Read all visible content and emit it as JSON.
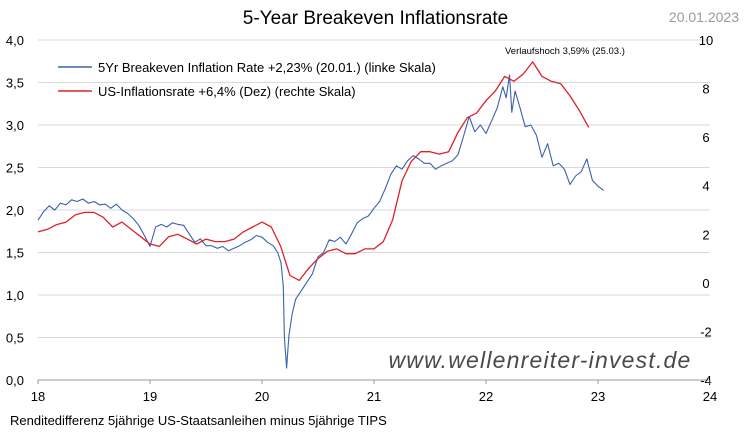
{
  "title": "5-Year Breakeven Inflationsrate",
  "date": "20.01.2023",
  "footnote": "Renditedifferenz 5jährige US-Staatsanleihen minus 5jährige TIPS",
  "annotation": "Verlaufshoch 3,59% (25.03.)",
  "watermark": "www.wellenreiter-invest.de",
  "chart_data": {
    "type": "line",
    "xlabel": "",
    "ylabel": "",
    "x_ticks": [
      "18",
      "19",
      "20",
      "21",
      "22",
      "23",
      "24"
    ],
    "x_range": [
      18,
      24
    ],
    "y_left_range": [
      0,
      4
    ],
    "y_left_ticks": [
      "0,0",
      "0,5",
      "1,0",
      "1,5",
      "2,0",
      "2,5",
      "3,0",
      "3,5",
      "4,0"
    ],
    "y_right_range": [
      -4,
      10
    ],
    "y_right_ticks": [
      "-4",
      "-2",
      "0",
      "2",
      "4",
      "6",
      "8",
      "10"
    ],
    "grid": true,
    "legend_position": "top-left",
    "series": [
      {
        "name": "5Yr Breakeven Inflation Rate +2,23% (20.01.) (linke Skala)",
        "axis": "left",
        "color": "#3a62ad",
        "x": [
          18.0,
          18.05,
          18.1,
          18.15,
          18.2,
          18.25,
          18.3,
          18.35,
          18.4,
          18.45,
          18.5,
          18.55,
          18.6,
          18.65,
          18.7,
          18.75,
          18.8,
          18.85,
          18.9,
          18.95,
          19.0,
          19.05,
          19.1,
          19.15,
          19.2,
          19.25,
          19.3,
          19.35,
          19.4,
          19.45,
          19.5,
          19.55,
          19.6,
          19.65,
          19.7,
          19.75,
          19.8,
          19.85,
          19.9,
          19.95,
          20.0,
          20.05,
          20.1,
          20.14,
          20.17,
          20.19,
          20.2,
          20.22,
          20.24,
          20.27,
          20.3,
          20.35,
          20.4,
          20.45,
          20.5,
          20.55,
          20.6,
          20.65,
          20.7,
          20.75,
          20.8,
          20.85,
          20.9,
          20.95,
          21.0,
          21.05,
          21.1,
          21.15,
          21.2,
          21.25,
          21.3,
          21.35,
          21.4,
          21.45,
          21.5,
          21.55,
          21.6,
          21.65,
          21.7,
          21.75,
          21.8,
          21.85,
          21.9,
          21.95,
          22.0,
          22.05,
          22.1,
          22.15,
          22.18,
          22.21,
          22.23,
          22.26,
          22.3,
          22.35,
          22.4,
          22.45,
          22.5,
          22.55,
          22.6,
          22.65,
          22.7,
          22.75,
          22.8,
          22.85,
          22.9,
          22.95,
          23.0,
          23.05
        ],
        "values": [
          1.88,
          1.98,
          2.05,
          2.0,
          2.08,
          2.06,
          2.12,
          2.1,
          2.13,
          2.08,
          2.1,
          2.06,
          2.07,
          2.02,
          2.07,
          2.0,
          1.96,
          1.9,
          1.82,
          1.7,
          1.57,
          1.8,
          1.83,
          1.8,
          1.85,
          1.83,
          1.82,
          1.72,
          1.62,
          1.66,
          1.58,
          1.58,
          1.55,
          1.57,
          1.52,
          1.55,
          1.58,
          1.62,
          1.65,
          1.7,
          1.68,
          1.62,
          1.58,
          1.5,
          1.38,
          1.1,
          0.5,
          0.14,
          0.52,
          0.78,
          0.95,
          1.05,
          1.15,
          1.25,
          1.45,
          1.5,
          1.65,
          1.63,
          1.68,
          1.6,
          1.72,
          1.85,
          1.9,
          1.93,
          2.02,
          2.1,
          2.25,
          2.42,
          2.52,
          2.48,
          2.58,
          2.64,
          2.6,
          2.55,
          2.55,
          2.48,
          2.52,
          2.55,
          2.58,
          2.65,
          2.87,
          3.1,
          2.92,
          3.0,
          2.9,
          3.05,
          3.2,
          3.45,
          3.32,
          3.59,
          3.15,
          3.4,
          3.22,
          2.98,
          3.0,
          2.88,
          2.62,
          2.78,
          2.52,
          2.55,
          2.48,
          2.3,
          2.4,
          2.45,
          2.6,
          2.35,
          2.28,
          2.23
        ]
      },
      {
        "name": "US-Inflationsrate +6,4% (Dez) (rechte Skala)",
        "axis": "right",
        "color": "#e0202a",
        "x": [
          18.0,
          18.083,
          18.167,
          18.25,
          18.333,
          18.417,
          18.5,
          18.583,
          18.667,
          18.75,
          18.833,
          18.917,
          19.0,
          19.083,
          19.167,
          19.25,
          19.333,
          19.417,
          19.5,
          19.583,
          19.667,
          19.75,
          19.833,
          19.917,
          20.0,
          20.083,
          20.167,
          20.25,
          20.333,
          20.417,
          20.5,
          20.583,
          20.667,
          20.75,
          20.833,
          20.917,
          21.0,
          21.083,
          21.167,
          21.25,
          21.333,
          21.417,
          21.5,
          21.583,
          21.667,
          21.75,
          21.833,
          21.917,
          22.0,
          22.083,
          22.167,
          22.25,
          22.333,
          22.417,
          22.5,
          22.583,
          22.667,
          22.75,
          22.833,
          22.917
        ],
        "values": [
          2.1,
          2.2,
          2.4,
          2.5,
          2.8,
          2.9,
          2.9,
          2.7,
          2.3,
          2.5,
          2.2,
          1.9,
          1.6,
          1.5,
          1.9,
          2.0,
          1.8,
          1.6,
          1.8,
          1.7,
          1.7,
          1.8,
          2.1,
          2.3,
          2.5,
          2.3,
          1.5,
          0.3,
          0.1,
          0.6,
          1.0,
          1.3,
          1.4,
          1.2,
          1.2,
          1.4,
          1.4,
          1.7,
          2.6,
          4.2,
          5.0,
          5.4,
          5.4,
          5.3,
          5.4,
          6.2,
          6.8,
          7.0,
          7.5,
          7.9,
          8.5,
          8.3,
          8.6,
          9.1,
          8.5,
          8.3,
          8.2,
          7.7,
          7.1,
          6.4
        ]
      }
    ]
  }
}
